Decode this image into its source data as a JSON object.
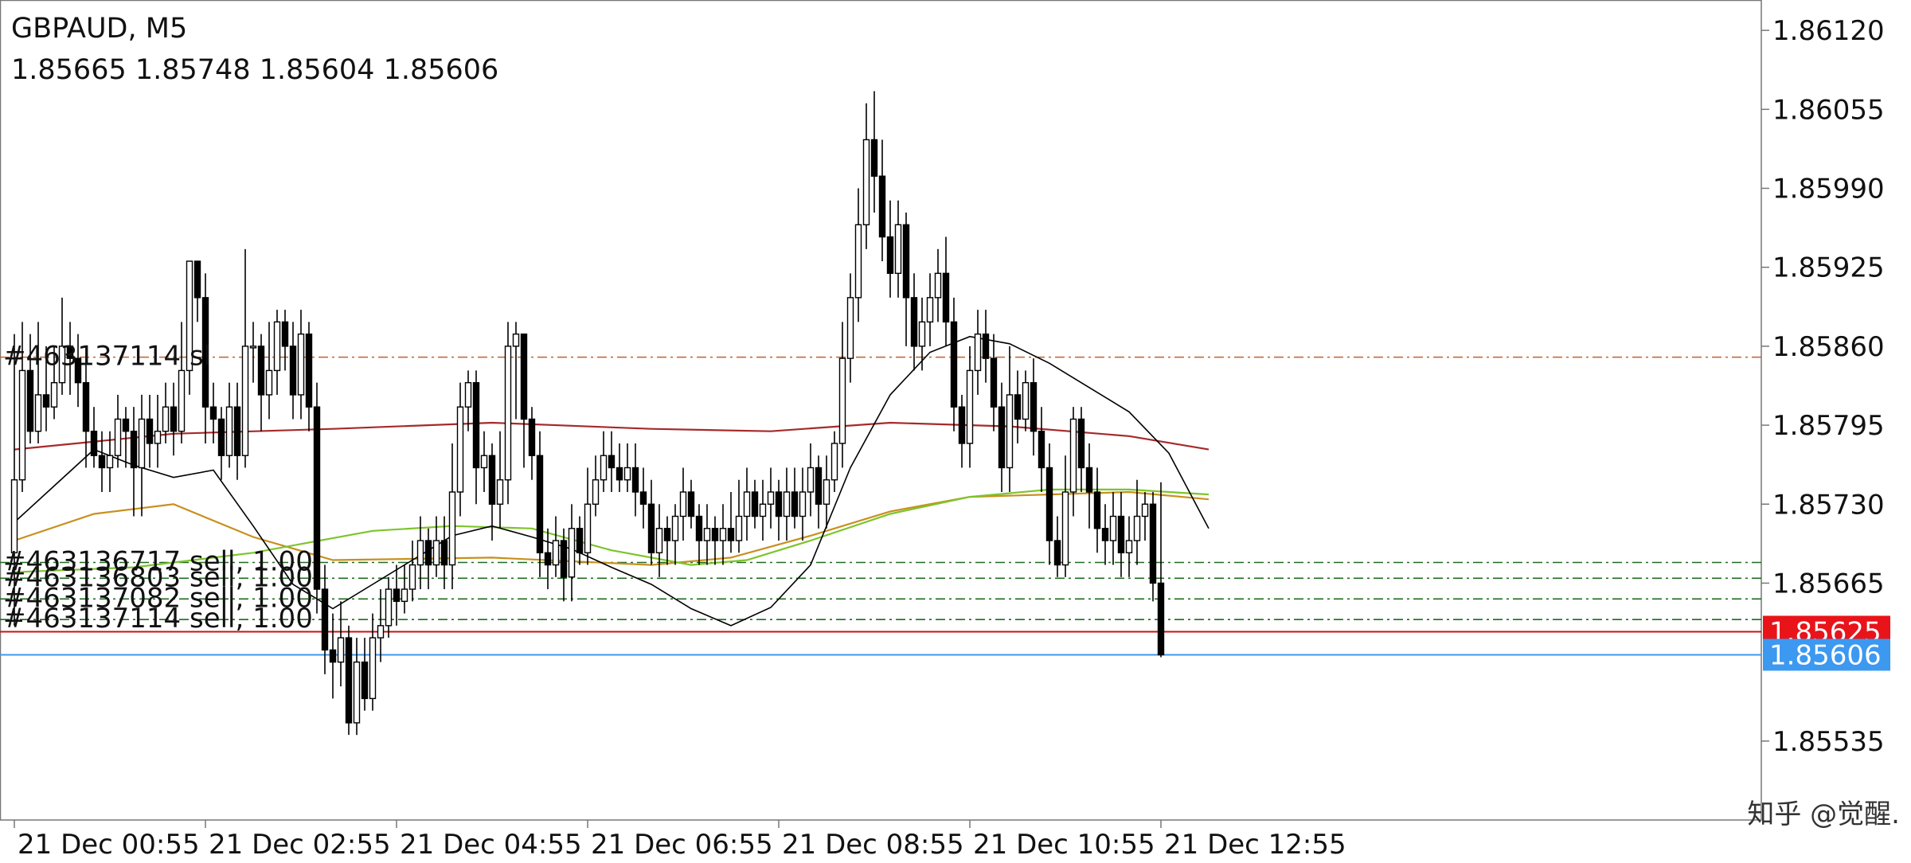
{
  "header": {
    "symbol_timeframe": "GBPAUD, M5",
    "ohlc": "1.85665 1.85748 1.85604 1.85606"
  },
  "watermark": "知乎 @觉醒.",
  "chart_data": {
    "type": "candlestick",
    "symbol": "GBPAUD",
    "timeframe": "M5",
    "ylim": [
      1.8547,
      1.86145
    ],
    "y_ticks": [
      "1.86120",
      "1.86055",
      "1.85990",
      "1.85925",
      "1.85860",
      "1.85795",
      "1.85730",
      "1.85665",
      "1.85535"
    ],
    "x_ticks": [
      {
        "label": "21 Dec 00:55",
        "index": 0
      },
      {
        "label": "21 Dec 02:55",
        "index": 24
      },
      {
        "label": "21 Dec 04:55",
        "index": 48
      },
      {
        "label": "21 Dec 06:55",
        "index": 72
      },
      {
        "label": "21 Dec 08:55",
        "index": 96
      },
      {
        "label": "21 Dec 10:55",
        "index": 120
      },
      {
        "label": "21 Dec 12:55",
        "index": 144
      }
    ],
    "price_labels": [
      {
        "value": 1.85625,
        "text": "1.85625",
        "color": "#e8141a"
      },
      {
        "value": 1.85606,
        "text": "1.85606",
        "color": "#3d98f0"
      }
    ],
    "grid": false,
    "colors": {
      "bull_body": "#ffffff",
      "bear_body": "#000000",
      "candle_outline": "#000000",
      "sl_line": "#c0622e",
      "ma_long": "#a52a2a",
      "ma_mid": "#c8901e",
      "ma_short": "#7ec42c",
      "ma_fast": "#000000",
      "order_line": "#1f6b1f",
      "entry_line": "#cc1010",
      "bid_line": "#3d98f0",
      "axis": "#777777"
    },
    "horizontal_lines": [
      {
        "name": "sl",
        "value": 1.85851,
        "style": "dashdot",
        "color": "#c0622e"
      },
      {
        "name": "order-463136717",
        "value": 1.85682,
        "style": "dashdot",
        "color": "#1f6b1f"
      },
      {
        "name": "order-463136803",
        "value": 1.85669,
        "style": "dashdot",
        "color": "#1f6b1f"
      },
      {
        "name": "order-463137082",
        "value": 1.85652,
        "style": "dashdot",
        "color": "#1f6b1f"
      },
      {
        "name": "order-463137114",
        "value": 1.85635,
        "style": "dashdot",
        "color": "#1f6b1f"
      },
      {
        "name": "entry",
        "value": 1.85625,
        "style": "solid",
        "color": "#cc1010"
      },
      {
        "name": "bid",
        "value": 1.85606,
        "style": "solid",
        "color": "#3d98f0"
      }
    ],
    "annotations": [
      {
        "text": "#463137114 sl",
        "value": 1.85851
      },
      {
        "text": "#463136717 sell, 1.00",
        "value": 1.85682
      },
      {
        "text": "#463136803 sell, 1.00",
        "value": 1.85669
      },
      {
        "text": "#463137082 sell, 1.00",
        "value": 1.85652
      },
      {
        "text": "#463137114 sell, 1.00",
        "value": 1.85635
      }
    ],
    "ma_series": [
      {
        "key": "ma_long",
        "points": [
          [
            0,
            1.85775
          ],
          [
            20,
            1.85788
          ],
          [
            40,
            1.85792
          ],
          [
            60,
            1.85797
          ],
          [
            80,
            1.85792
          ],
          [
            95,
            1.8579
          ],
          [
            110,
            1.85797
          ],
          [
            125,
            1.85794
          ],
          [
            140,
            1.85786
          ],
          [
            150,
            1.85775
          ]
        ]
      },
      {
        "key": "ma_mid",
        "points": [
          [
            0,
            1.857
          ],
          [
            10,
            1.85722
          ],
          [
            20,
            1.8573
          ],
          [
            30,
            1.85703
          ],
          [
            40,
            1.85684
          ],
          [
            60,
            1.85686
          ],
          [
            80,
            1.8568
          ],
          [
            90,
            1.85686
          ],
          [
            100,
            1.85704
          ],
          [
            110,
            1.85724
          ],
          [
            120,
            1.85736
          ],
          [
            130,
            1.85738
          ],
          [
            140,
            1.8574
          ],
          [
            150,
            1.85734
          ]
        ]
      },
      {
        "key": "ma_short",
        "points": [
          [
            0,
            1.85674
          ],
          [
            15,
            1.85678
          ],
          [
            30,
            1.8569
          ],
          [
            45,
            1.85708
          ],
          [
            55,
            1.85712
          ],
          [
            65,
            1.8571
          ],
          [
            75,
            1.85692
          ],
          [
            85,
            1.8568
          ],
          [
            92,
            1.85684
          ],
          [
            100,
            1.857
          ],
          [
            110,
            1.85722
          ],
          [
            120,
            1.85736
          ],
          [
            130,
            1.85742
          ],
          [
            140,
            1.85742
          ],
          [
            150,
            1.85738
          ]
        ]
      },
      {
        "key": "ma_fast",
        "points": [
          [
            0,
            1.85715
          ],
          [
            5,
            1.85745
          ],
          [
            10,
            1.85775
          ],
          [
            15,
            1.85762
          ],
          [
            20,
            1.85752
          ],
          [
            25,
            1.85758
          ],
          [
            30,
            1.85712
          ],
          [
            35,
            1.85664
          ],
          [
            40,
            1.85644
          ],
          [
            45,
            1.85664
          ],
          [
            50,
            1.85684
          ],
          [
            55,
            1.85704
          ],
          [
            60,
            1.85712
          ],
          [
            65,
            1.85703
          ],
          [
            70,
            1.85693
          ],
          [
            75,
            1.85678
          ],
          [
            80,
            1.85664
          ],
          [
            85,
            1.85644
          ],
          [
            90,
            1.8563
          ],
          [
            95,
            1.85645
          ],
          [
            100,
            1.8568
          ],
          [
            105,
            1.8576
          ],
          [
            110,
            1.8582
          ],
          [
            115,
            1.85855
          ],
          [
            120,
            1.85868
          ],
          [
            125,
            1.85862
          ],
          [
            130,
            1.85846
          ],
          [
            135,
            1.85826
          ],
          [
            140,
            1.85806
          ],
          [
            145,
            1.85772
          ],
          [
            150,
            1.8571
          ]
        ]
      }
    ],
    "candles": [
      [
        1.8569,
        1.8575,
        1.8563,
        1.8587
      ],
      [
        1.8575,
        1.8584,
        1.8574,
        1.8588
      ],
      [
        1.8584,
        1.8579,
        1.8578,
        1.8587
      ],
      [
        1.8579,
        1.8582,
        1.8578,
        1.8588
      ],
      [
        1.8582,
        1.8581,
        1.8579,
        1.8586
      ],
      [
        1.8581,
        1.8583,
        1.858,
        1.8586
      ],
      [
        1.8583,
        1.8586,
        1.8582,
        1.859
      ],
      [
        1.8586,
        1.8585,
        1.8582,
        1.8588
      ],
      [
        1.8585,
        1.8583,
        1.8581,
        1.8587
      ],
      [
        1.8583,
        1.8579,
        1.8576,
        1.8585
      ],
      [
        1.8579,
        1.8577,
        1.8576,
        1.8581
      ],
      [
        1.8577,
        1.8576,
        1.8574,
        1.8579
      ],
      [
        1.8576,
        1.8577,
        1.8574,
        1.8579
      ],
      [
        1.8577,
        1.858,
        1.8576,
        1.8582
      ],
      [
        1.858,
        1.8579,
        1.8576,
        1.8581
      ],
      [
        1.8579,
        1.8576,
        1.8572,
        1.8581
      ],
      [
        1.8576,
        1.858,
        1.8572,
        1.8582
      ],
      [
        1.858,
        1.8578,
        1.8576,
        1.8582
      ],
      [
        1.8578,
        1.8579,
        1.8576,
        1.8582
      ],
      [
        1.8579,
        1.8581,
        1.8578,
        1.8583
      ],
      [
        1.8581,
        1.8579,
        1.8577,
        1.8583
      ],
      [
        1.8579,
        1.8584,
        1.8578,
        1.8588
      ],
      [
        1.8584,
        1.8593,
        1.8582,
        1.8593
      ],
      [
        1.8593,
        1.859,
        1.8588,
        1.8593
      ],
      [
        1.859,
        1.8581,
        1.8578,
        1.8592
      ],
      [
        1.8581,
        1.858,
        1.8578,
        1.8583
      ],
      [
        1.858,
        1.8577,
        1.8575,
        1.8581
      ],
      [
        1.8577,
        1.8581,
        1.8576,
        1.8583
      ],
      [
        1.8581,
        1.8577,
        1.8575,
        1.8583
      ],
      [
        1.8577,
        1.8586,
        1.8576,
        1.8594
      ],
      [
        1.8586,
        1.8586,
        1.8583,
        1.8588
      ],
      [
        1.8586,
        1.8582,
        1.8579,
        1.8587
      ],
      [
        1.8582,
        1.8584,
        1.858,
        1.8588
      ],
      [
        1.8584,
        1.8588,
        1.8582,
        1.8589
      ],
      [
        1.8588,
        1.8586,
        1.8584,
        1.8589
      ],
      [
        1.8586,
        1.8582,
        1.858,
        1.8588
      ],
      [
        1.8582,
        1.8587,
        1.858,
        1.8589
      ],
      [
        1.8587,
        1.8581,
        1.8579,
        1.8588
      ],
      [
        1.8581,
        1.8566,
        1.8564,
        1.8583
      ],
      [
        1.8566,
        1.8561,
        1.8559,
        1.8568
      ],
      [
        1.8561,
        1.856,
        1.8557,
        1.8564
      ],
      [
        1.856,
        1.8562,
        1.8558,
        1.8565
      ],
      [
        1.8562,
        1.8555,
        1.8554,
        1.8563
      ],
      [
        1.8555,
        1.856,
        1.8554,
        1.8562
      ],
      [
        1.856,
        1.8557,
        1.8556,
        1.8562
      ],
      [
        1.8557,
        1.8562,
        1.8556,
        1.8564
      ],
      [
        1.8562,
        1.8563,
        1.856,
        1.8566
      ],
      [
        1.8563,
        1.8566,
        1.8562,
        1.8567
      ],
      [
        1.8566,
        1.8565,
        1.8563,
        1.8568
      ],
      [
        1.8565,
        1.8566,
        1.8564,
        1.8568
      ],
      [
        1.8566,
        1.8568,
        1.8565,
        1.857
      ],
      [
        1.8568,
        1.857,
        1.8566,
        1.8572
      ],
      [
        1.857,
        1.8568,
        1.8566,
        1.8571
      ],
      [
        1.8568,
        1.857,
        1.8567,
        1.8572
      ],
      [
        1.857,
        1.8568,
        1.8566,
        1.8572
      ],
      [
        1.8568,
        1.8574,
        1.8566,
        1.8578
      ],
      [
        1.8574,
        1.8581,
        1.8572,
        1.8583
      ],
      [
        1.8581,
        1.8583,
        1.8579,
        1.8584
      ],
      [
        1.8583,
        1.8576,
        1.8573,
        1.8584
      ],
      [
        1.8576,
        1.8577,
        1.8574,
        1.8579
      ],
      [
        1.8577,
        1.8573,
        1.857,
        1.8578
      ],
      [
        1.8573,
        1.8575,
        1.8571,
        1.8579
      ],
      [
        1.8575,
        1.8586,
        1.8573,
        1.8588
      ],
      [
        1.8586,
        1.8587,
        1.858,
        1.8588
      ],
      [
        1.8587,
        1.858,
        1.8576,
        1.8587
      ],
      [
        1.858,
        1.8577,
        1.8575,
        1.8581
      ],
      [
        1.8577,
        1.8569,
        1.8567,
        1.8579
      ],
      [
        1.8569,
        1.8568,
        1.8566,
        1.8571
      ],
      [
        1.8568,
        1.857,
        1.8567,
        1.8572
      ],
      [
        1.857,
        1.8567,
        1.8565,
        1.8571
      ],
      [
        1.8567,
        1.8571,
        1.8565,
        1.8573
      ],
      [
        1.8571,
        1.8569,
        1.8568,
        1.8572
      ],
      [
        1.8569,
        1.8573,
        1.8568,
        1.8576
      ],
      [
        1.8573,
        1.8575,
        1.8572,
        1.8577
      ],
      [
        1.8575,
        1.8577,
        1.8574,
        1.8579
      ],
      [
        1.8577,
        1.8576,
        1.8574,
        1.8579
      ],
      [
        1.8576,
        1.8575,
        1.8574,
        1.8578
      ],
      [
        1.8575,
        1.8576,
        1.8574,
        1.8578
      ],
      [
        1.8576,
        1.8574,
        1.8572,
        1.8578
      ],
      [
        1.8574,
        1.8573,
        1.8571,
        1.8576
      ],
      [
        1.8573,
        1.8569,
        1.8568,
        1.8575
      ],
      [
        1.8569,
        1.8571,
        1.8567,
        1.8573
      ],
      [
        1.8571,
        1.857,
        1.8568,
        1.8572
      ],
      [
        1.857,
        1.8572,
        1.8568,
        1.8573
      ],
      [
        1.8572,
        1.8574,
        1.857,
        1.8576
      ],
      [
        1.8574,
        1.8572,
        1.8571,
        1.8575
      ],
      [
        1.8572,
        1.857,
        1.8568,
        1.8573
      ],
      [
        1.857,
        1.8571,
        1.8568,
        1.8573
      ],
      [
        1.8571,
        1.857,
        1.8568,
        1.8572
      ],
      [
        1.857,
        1.8571,
        1.8568,
        1.8573
      ],
      [
        1.8571,
        1.857,
        1.8569,
        1.8574
      ],
      [
        1.857,
        1.8572,
        1.8569,
        1.8575
      ],
      [
        1.8572,
        1.8574,
        1.857,
        1.8576
      ],
      [
        1.8574,
        1.8572,
        1.8571,
        1.8575
      ],
      [
        1.8572,
        1.8573,
        1.857,
        1.8575
      ],
      [
        1.8573,
        1.8574,
        1.8571,
        1.8576
      ],
      [
        1.8574,
        1.8572,
        1.857,
        1.8575
      ],
      [
        1.8572,
        1.8574,
        1.857,
        1.8576
      ],
      [
        1.8574,
        1.8572,
        1.8571,
        1.8576
      ],
      [
        1.8572,
        1.8574,
        1.857,
        1.8576
      ],
      [
        1.8574,
        1.8576,
        1.8572,
        1.8578
      ],
      [
        1.8576,
        1.8573,
        1.8571,
        1.8577
      ],
      [
        1.8573,
        1.8575,
        1.8571,
        1.8577
      ],
      [
        1.8575,
        1.8578,
        1.8574,
        1.8579
      ],
      [
        1.8578,
        1.8585,
        1.8576,
        1.8588
      ],
      [
        1.8585,
        1.859,
        1.8583,
        1.8592
      ],
      [
        1.859,
        1.8596,
        1.8588,
        1.8599
      ],
      [
        1.8596,
        1.8603,
        1.8594,
        1.8606
      ],
      [
        1.8603,
        1.86,
        1.8597,
        1.8607
      ],
      [
        1.86,
        1.8595,
        1.8593,
        1.8603
      ],
      [
        1.8595,
        1.8592,
        1.859,
        1.8598
      ],
      [
        1.8592,
        1.8596,
        1.859,
        1.8598
      ],
      [
        1.8596,
        1.859,
        1.8586,
        1.8597
      ],
      [
        1.859,
        1.8586,
        1.8584,
        1.8592
      ],
      [
        1.8586,
        1.8588,
        1.8584,
        1.859
      ],
      [
        1.8588,
        1.859,
        1.8586,
        1.8592
      ],
      [
        1.859,
        1.8592,
        1.8588,
        1.8594
      ],
      [
        1.8592,
        1.8588,
        1.8586,
        1.8595
      ],
      [
        1.8588,
        1.8581,
        1.8579,
        1.859
      ],
      [
        1.8581,
        1.8578,
        1.8576,
        1.8582
      ],
      [
        1.8578,
        1.8584,
        1.8576,
        1.8586
      ],
      [
        1.8584,
        1.8587,
        1.8582,
        1.8589
      ],
      [
        1.8587,
        1.8585,
        1.8583,
        1.8589
      ],
      [
        1.8585,
        1.8581,
        1.8579,
        1.8587
      ],
      [
        1.8581,
        1.8576,
        1.8574,
        1.8583
      ],
      [
        1.8576,
        1.8582,
        1.8574,
        1.8586
      ],
      [
        1.8582,
        1.858,
        1.8578,
        1.8584
      ],
      [
        1.858,
        1.8583,
        1.8579,
        1.8584
      ],
      [
        1.8583,
        1.8579,
        1.8577,
        1.8585
      ],
      [
        1.8579,
        1.8576,
        1.8574,
        1.8581
      ],
      [
        1.8576,
        1.857,
        1.8568,
        1.8578
      ],
      [
        1.857,
        1.8568,
        1.8567,
        1.8572
      ],
      [
        1.8568,
        1.8574,
        1.8567,
        1.8577
      ],
      [
        1.8574,
        1.858,
        1.8572,
        1.8581
      ],
      [
        1.858,
        1.8576,
        1.8574,
        1.8581
      ],
      [
        1.8576,
        1.8574,
        1.8571,
        1.8578
      ],
      [
        1.8574,
        1.8571,
        1.8569,
        1.8576
      ],
      [
        1.8571,
        1.857,
        1.8568,
        1.8573
      ],
      [
        1.857,
        1.8572,
        1.8568,
        1.8574
      ],
      [
        1.8572,
        1.8569,
        1.8567,
        1.8574
      ],
      [
        1.8569,
        1.857,
        1.8567,
        1.8572
      ],
      [
        1.857,
        1.8572,
        1.8568,
        1.8575
      ],
      [
        1.8572,
        1.8573,
        1.857,
        1.8574
      ],
      [
        1.8573,
        1.85665,
        1.8565,
        1.8574
      ],
      [
        1.85665,
        1.85606,
        1.85604,
        1.85748
      ]
    ]
  }
}
